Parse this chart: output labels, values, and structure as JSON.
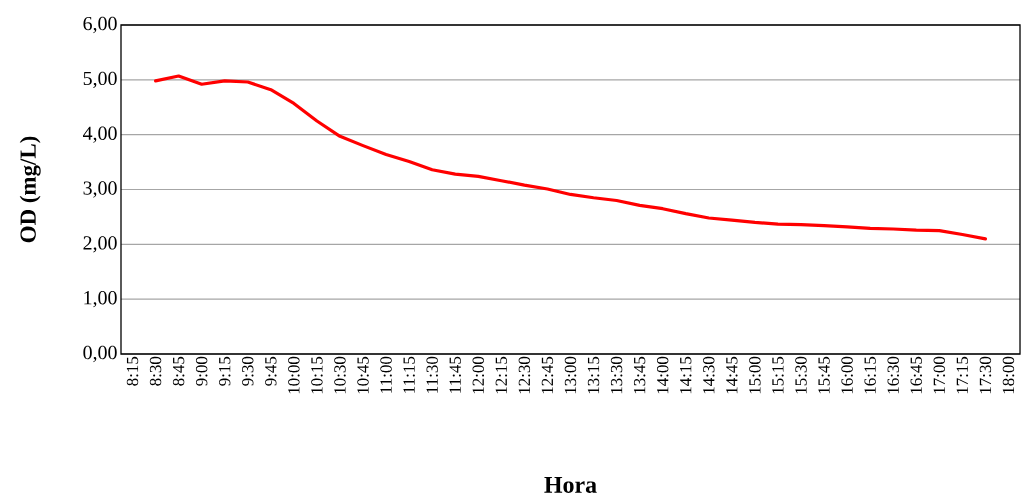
{
  "chart_data": {
    "type": "line",
    "xlabel": "Hora",
    "ylabel": "OD (mg/L)",
    "categories": [
      "8:15",
      "8:30",
      "8:45",
      "9:00",
      "9:15",
      "9:30",
      "9:45",
      "10:00",
      "10:15",
      "10:30",
      "10:45",
      "11:00",
      "11:15",
      "11:30",
      "11:45",
      "12:00",
      "12:15",
      "12:30",
      "12:45",
      "13:00",
      "13:15",
      "13:30",
      "13:45",
      "14:00",
      "14:15",
      "14:30",
      "14:45",
      "15:00",
      "15:15",
      "15:30",
      "15:45",
      "16:00",
      "16:15",
      "16:30",
      "16:45",
      "17:00",
      "17:15",
      "17:30",
      "18:00"
    ],
    "series": [
      {
        "color": "#ff0000",
        "values": [
          null,
          4.98,
          5.07,
          4.92,
          4.98,
          4.96,
          4.82,
          4.57,
          4.25,
          3.97,
          3.8,
          3.64,
          3.51,
          3.36,
          3.28,
          3.24,
          3.16,
          3.08,
          3.01,
          2.91,
          2.85,
          2.8,
          2.71,
          2.65,
          2.56,
          2.48,
          2.44,
          2.4,
          2.37,
          2.36,
          2.34,
          2.32,
          2.29,
          2.28,
          2.26,
          2.25,
          2.18,
          2.1,
          null
        ]
      }
    ],
    "ylim": [
      0,
      6
    ],
    "yticks": [
      {
        "value": 0,
        "label": "0,00"
      },
      {
        "value": 1,
        "label": "1,00"
      },
      {
        "value": 2,
        "label": "2,00"
      },
      {
        "value": 3,
        "label": "3,00"
      },
      {
        "value": 4,
        "label": "4,00"
      },
      {
        "value": 5,
        "label": "5,00"
      },
      {
        "value": 6,
        "label": "6,00"
      }
    ],
    "grid": "y",
    "marker": "none",
    "line_style": "solid"
  }
}
